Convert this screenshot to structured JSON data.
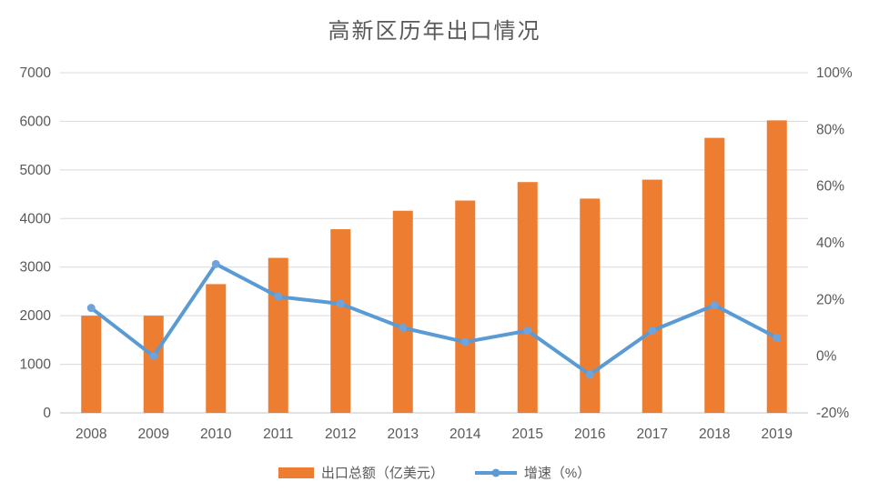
{
  "chart_data": {
    "type": "bar",
    "subtype": "combo-bar-line-dual-axis",
    "title": "高新区历年出口情况",
    "categories": [
      "2008",
      "2009",
      "2010",
      "2011",
      "2012",
      "2013",
      "2014",
      "2015",
      "2016",
      "2017",
      "2018",
      "2019"
    ],
    "series": [
      {
        "name": "出口总额（亿美元）",
        "type": "bar",
        "axis": "left",
        "values": [
          2000,
          2000,
          2650,
          3190,
          3780,
          4160,
          4370,
          4750,
          4410,
          4800,
          5660,
          6020
        ]
      },
      {
        "name": "增速（%）",
        "type": "line",
        "axis": "right",
        "values": [
          17,
          0,
          32.5,
          21,
          18.5,
          10,
          5,
          9,
          -6.5,
          9,
          18,
          6.5
        ]
      }
    ],
    "left_axis": {
      "min": 0,
      "max": 7000,
      "step": 1000,
      "tick_labels": [
        "0",
        "1000",
        "2000",
        "3000",
        "4000",
        "5000",
        "6000",
        "7000"
      ]
    },
    "right_axis": {
      "min": -20,
      "max": 100,
      "step": 20,
      "tick_labels": [
        "-20%",
        "0%",
        "20%",
        "40%",
        "60%",
        "80%",
        "100%"
      ]
    },
    "grid": "horizontal-major-left-axis-only",
    "legend_position": "bottom",
    "xlabel": "",
    "ylabel": ""
  },
  "colors": {
    "bar": "#ED7D31",
    "line": "#5B9BD5",
    "marker": "#6FA3DB",
    "grid": "#D9D9D9",
    "baseline": "#C6C6C6",
    "text": "#595959",
    "background": "#FFFFFF"
  }
}
